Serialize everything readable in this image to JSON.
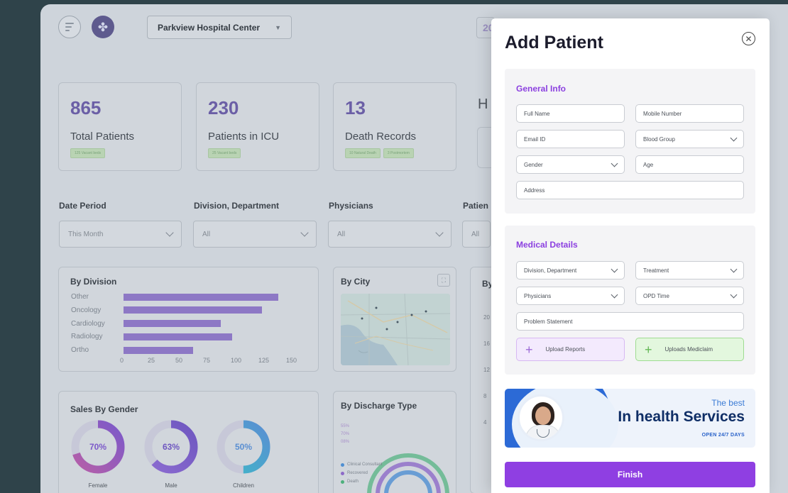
{
  "header": {
    "hospital": "Parkview Hospital Center",
    "date_peek": "20"
  },
  "stats": [
    {
      "value": "865",
      "label": "Total Patients",
      "tags": [
        "125 Vacant beds"
      ]
    },
    {
      "value": "230",
      "label": "Patients in ICU",
      "tags": [
        "25 Vacant beds"
      ]
    },
    {
      "value": "13",
      "label": "Death Records",
      "tags": [
        "10 Natural Death",
        "3 Postmortem"
      ]
    }
  ],
  "peek": {
    "heading_letter": "H",
    "filter_label": "Patien",
    "filter_value": "All"
  },
  "filters": [
    {
      "label": "Date Period",
      "value": "This Month"
    },
    {
      "label": "Division, Department",
      "value": "All"
    },
    {
      "label": "Physicians",
      "value": "All"
    }
  ],
  "by_division": {
    "title": "By Division",
    "chart_data": {
      "type": "bar",
      "orientation": "horizontal",
      "categories": [
        "Other",
        "Oncology",
        "Cardiology",
        "Radiology",
        "Ortho"
      ],
      "values": [
        140,
        125,
        88,
        98,
        63
      ],
      "xlim": [
        0,
        150
      ],
      "xticks": [
        "0",
        "25",
        "50",
        "75",
        "100",
        "125",
        "150"
      ],
      "color": "#8d78c5"
    }
  },
  "by_city": {
    "title": "By City"
  },
  "third_panel": {
    "title": "By",
    "ticks": [
      "20",
      "16",
      "12",
      "8",
      "4"
    ]
  },
  "by_gender": {
    "title": "Sales By Gender",
    "items": [
      {
        "label": "Female",
        "value": "70%",
        "pct": 70,
        "colors": [
          "#b65fa8",
          "#7c59c9"
        ]
      },
      {
        "label": "Male",
        "value": "63%",
        "pct": 63,
        "colors": [
          "#8b6bd0",
          "#6f57c0"
        ]
      },
      {
        "label": "Children",
        "value": "50%",
        "pct": 50,
        "colors": [
          "#3fb8c8",
          "#5a8fd2"
        ]
      }
    ]
  },
  "by_discharge": {
    "title": "By Discharge Type",
    "pcts": [
      "55%",
      "70%",
      "08%"
    ],
    "legend": [
      {
        "label": "Clinical Consultant",
        "color": "#4f8fd2"
      },
      {
        "label": "Recovered",
        "color": "#8d6ac8"
      },
      {
        "label": "Death",
        "color": "#4db07c"
      }
    ]
  },
  "modal": {
    "title": "Add Patient",
    "general": {
      "title": "General Info",
      "full_name": "Full Name",
      "mobile": "Mobile Number",
      "email": "Email ID",
      "blood_group": "Blood Group",
      "gender": "Gender",
      "age": "Age",
      "address": "Address"
    },
    "medical": {
      "title": "Medical Details",
      "division": "Division, Department",
      "treatment": "Treatment",
      "physicians": "Physicians",
      "opd_time": "OPD Time",
      "problem": "Problem Statement",
      "upload_reports": "Upload Reports",
      "upload_mediclaim": "Uploads Mediclaim"
    },
    "banner": {
      "line1": "The best",
      "line2": "In health Services",
      "line3": "OPEN 24/7 DAYS"
    },
    "finish": "Finish"
  }
}
